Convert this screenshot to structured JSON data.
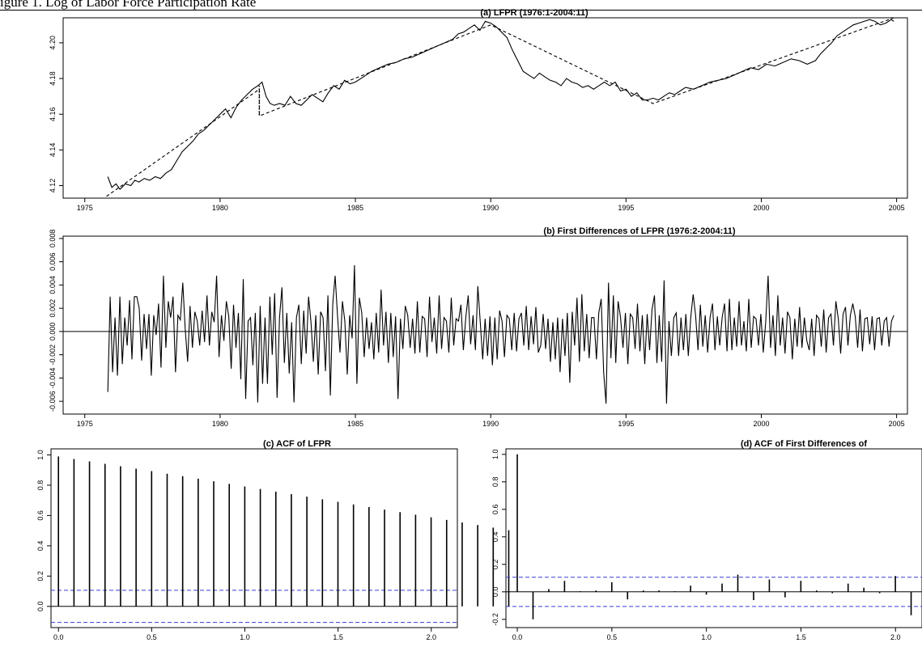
{
  "caption": "igure 1. Log of Labor Force Participation Rate",
  "chart_data": [
    {
      "id": "a",
      "type": "line",
      "title": "(a) LFPR (1976:1-2004:11)",
      "xlim": [
        1974.2,
        2005.4
      ],
      "ylim": [
        4.113,
        4.214
      ],
      "xticks": [
        "1975",
        "1980",
        "1985",
        "1990",
        "1995",
        "2000",
        "2005"
      ],
      "yticks": [
        "4.12",
        "4.14",
        "4.16",
        "4.18",
        "4.20"
      ],
      "series": [
        {
          "style": "solid",
          "x": [
            1975.85,
            1976.0,
            1976.15,
            1976.3,
            1976.5,
            1976.7,
            1976.85,
            1977.0,
            1977.2,
            1977.4,
            1977.6,
            1977.8,
            1978.0,
            1978.2,
            1978.4,
            1978.6,
            1978.8,
            1979.0,
            1979.2,
            1979.4,
            1979.6,
            1979.8,
            1980.0,
            1980.2,
            1980.4,
            1980.6,
            1980.8,
            1981.0,
            1981.2,
            1981.4,
            1981.55,
            1981.7,
            1981.85,
            1982.0,
            1982.2,
            1982.4,
            1982.6,
            1982.8,
            1983.0,
            1983.2,
            1983.4,
            1983.6,
            1983.8,
            1984.0,
            1984.2,
            1984.4,
            1984.6,
            1984.8,
            1985.0,
            1985.3,
            1985.6,
            1985.9,
            1986.2,
            1986.5,
            1986.8,
            1987.1,
            1987.4,
            1987.7,
            1988.0,
            1988.3,
            1988.6,
            1988.8,
            1989.0,
            1989.2,
            1989.4,
            1989.6,
            1989.8,
            1990.0,
            1990.2,
            1990.4,
            1990.6,
            1990.8,
            1991.0,
            1991.2,
            1991.4,
            1991.6,
            1991.8,
            1992.0,
            1992.2,
            1992.4,
            1992.6,
            1992.8,
            1993.0,
            1993.2,
            1993.4,
            1993.6,
            1993.8,
            1994.0,
            1994.2,
            1994.4,
            1994.6,
            1994.8,
            1995.0,
            1995.2,
            1995.4,
            1995.6,
            1995.8,
            1996.0,
            1996.2,
            1996.4,
            1996.6,
            1996.8,
            1997.0,
            1997.2,
            1997.5,
            1997.8,
            1998.1,
            1998.4,
            1998.7,
            1999.0,
            1999.3,
            1999.6,
            1999.9,
            2000.2,
            2000.5,
            2000.8,
            2001.1,
            2001.4,
            2001.7,
            2002.0,
            2002.2,
            2002.4,
            2002.6,
            2002.8,
            2003.0,
            2003.2,
            2003.4,
            2003.6,
            2003.8,
            2004.0,
            2004.2,
            2004.4,
            2004.6,
            2004.8,
            2004.9
          ],
          "y": [
            4.125,
            4.119,
            4.121,
            4.118,
            4.121,
            4.12,
            4.123,
            4.122,
            4.124,
            4.123,
            4.125,
            4.124,
            4.127,
            4.129,
            4.134,
            4.139,
            4.142,
            4.145,
            4.149,
            4.151,
            4.154,
            4.157,
            4.16,
            4.163,
            4.158,
            4.164,
            4.168,
            4.171,
            4.174,
            4.176,
            4.178,
            4.17,
            4.166,
            4.165,
            4.166,
            4.165,
            4.17,
            4.166,
            4.165,
            4.168,
            4.171,
            4.169,
            4.167,
            4.172,
            4.176,
            4.174,
            4.179,
            4.177,
            4.178,
            4.181,
            4.184,
            4.186,
            4.188,
            4.189,
            4.191,
            4.192,
            4.194,
            4.196,
            4.198,
            4.2,
            4.202,
            4.205,
            4.206,
            4.208,
            4.21,
            4.207,
            4.212,
            4.211,
            4.209,
            4.206,
            4.203,
            4.196,
            4.19,
            4.184,
            4.182,
            4.18,
            4.183,
            4.181,
            4.179,
            4.178,
            4.176,
            4.18,
            4.178,
            4.177,
            4.175,
            4.176,
            4.174,
            4.176,
            4.178,
            4.176,
            4.178,
            4.173,
            4.174,
            4.17,
            4.172,
            4.168,
            4.168,
            4.169,
            4.168,
            4.17,
            4.172,
            4.171,
            4.173,
            4.175,
            4.174,
            4.176,
            4.178,
            4.179,
            4.18,
            4.182,
            4.184,
            4.186,
            4.185,
            4.188,
            4.187,
            4.189,
            4.191,
            4.19,
            4.188,
            4.19,
            4.194,
            4.197,
            4.2,
            4.204,
            4.206,
            4.208,
            4.21,
            4.211,
            4.212,
            4.213,
            4.212,
            4.21,
            4.211,
            4.213,
            4.212
          ]
        },
        {
          "style": "dashed",
          "x": [
            1975.8,
            1981.45,
            1981.45,
            1990.0,
            1996.0,
            2004.9
          ],
          "y": [
            4.114,
            4.174,
            4.159,
            4.21,
            4.166,
            4.214
          ]
        }
      ],
      "annotations": [
        {
          "style": "dotted",
          "x": [
            1981.45,
            1981.45
          ],
          "y": [
            4.176,
            4.159
          ]
        }
      ]
    },
    {
      "id": "b",
      "type": "line",
      "title": "(b) First Differences of LFPR (1976:2-2004:11)",
      "xlim": [
        1974.2,
        2005.4
      ],
      "ylim": [
        -0.0071,
        0.0082
      ],
      "xticks": [
        "1975",
        "1980",
        "1985",
        "1990",
        "1995",
        "2000",
        "2005"
      ],
      "yticks": [
        "-0.006",
        "-0.004",
        "-0.002",
        "0.000",
        "0.002",
        "0.004",
        "0.006",
        "0.008"
      ],
      "hline": 0,
      "series": [
        {
          "style": "solid",
          "x_start": 1975.85,
          "x_end": 2004.9,
          "values": [
            -0.0052,
            0.003,
            -0.0035,
            0.0012,
            -0.0038,
            0.003,
            -0.0028,
            0.0012,
            -0.0012,
            0.0027,
            -0.0024,
            0.003,
            0.003,
            0.002,
            -0.0025,
            0.0015,
            -0.0015,
            0.0015,
            -0.0038,
            0.0014,
            -0.0003,
            0.0024,
            -0.0031,
            0.0048,
            -0.0014,
            0.0026,
            0.0012,
            0.003,
            -0.0035,
            0.0014,
            0.001,
            0.0042,
            0.0002,
            -0.0026,
            0.0022,
            -0.0014,
            0.0017,
            0.0009,
            -0.0012,
            0.0018,
            -0.0009,
            0.0031,
            -0.0012,
            0.0017,
            0.0008,
            0.0048,
            -0.0022,
            0.0014,
            -0.0008,
            0.0026,
            0.0013,
            -0.0032,
            0.0023,
            -0.0014,
            0.0016,
            -0.0041,
            0.0045,
            -0.0058,
            0.0009,
            0.0012,
            -0.0029,
            0.0016,
            -0.0061,
            0.0022,
            -0.0045,
            0.0012,
            -0.0045,
            0.003,
            -0.002,
            0.0033,
            -0.0057,
            0.0012,
            0.0038,
            -0.0027,
            0.0016,
            -0.0036,
            0.0008,
            -0.0061,
            0.0012,
            0.0023,
            -0.0028,
            0.0018,
            -0.0019,
            0.003,
            0.0008,
            -0.0026,
            0.0014,
            -0.0037,
            0.0017,
            0.0012,
            -0.0034,
            0.0031,
            -0.0055,
            0.0024,
            0.0048,
            0.0013,
            -0.0018,
            0.0026,
            0.0009,
            -0.0037,
            0.0014,
            -0.0006,
            0.0057,
            -0.0045,
            0.0029,
            0.0016,
            -0.0022,
            0.0012,
            -0.0015,
            0.0008,
            -0.0024,
            0.0016,
            -0.0018,
            0.0036,
            -0.0012,
            0.0017,
            -0.0027,
            0.0016,
            -0.0022,
            0.0013,
            -0.0058,
            0.0011,
            -0.0015,
            0.0022,
            0.0014,
            -0.0014,
            0.0011,
            -0.0019,
            0.0026,
            -0.0018,
            0.0013,
            0.0011,
            -0.0022,
            0.003,
            -0.0009,
            0.0012,
            -0.0019,
            0.0031,
            -0.0015,
            0.0012,
            0.0009,
            -0.0018,
            0.0029,
            -0.0012,
            0.0011,
            0.0009,
            0.0023,
            -0.0016,
            0.0012,
            0.0031,
            -0.0011,
            0.0014,
            -0.0016,
            0.0039,
            0.0008,
            -0.0024,
            0.0011,
            -0.0021,
            0.0013,
            -0.0029,
            0.0012,
            -0.0024,
            0.0018,
            0.0009,
            -0.0022,
            0.0014,
            0.0011,
            -0.0016,
            0.0016,
            -0.0017,
            0.0011,
            0.0016,
            -0.0012,
            0.0022,
            -0.0016,
            0.0013,
            -0.0011,
            0.0021,
            -0.0018,
            -0.0012,
            0.0015,
            -0.0015,
            0.0011,
            -0.0026,
            0.0008,
            -0.0024,
            0.0012,
            -0.0035,
            0.0011,
            -0.0021,
            0.0016,
            -0.0044,
            0.0017,
            -0.0012,
            0.0029,
            -0.0026,
            0.0032,
            -0.0017,
            0.0015,
            -0.0023,
            0.0012,
            0.0012,
            -0.0024,
            0.0016,
            0.0028,
            -0.0035,
            -0.0062,
            0.0042,
            -0.0023,
            0.0031,
            -0.0027,
            0.0026,
            0.0012,
            -0.0014,
            0.0016,
            -0.0028,
            0.0015,
            0.0012,
            -0.0015,
            0.0024,
            -0.0017,
            0.0014,
            -0.0028,
            0.0015,
            -0.0016,
            0.0019,
            0.0031,
            -0.0027,
            0.0014,
            -0.0026,
            0.0044,
            -0.0062,
            0.0009,
            -0.0021,
            0.0012,
            0.0016,
            -0.0021,
            0.0012,
            -0.0016,
            0.0015,
            -0.0021,
            0.0012,
            0.0032,
            0.0014,
            -0.0016,
            0.0023,
            -0.0013,
            0.0014,
            -0.0018,
            0.0012,
            0.0024,
            -0.0016,
            0.0013,
            -0.0012,
            0.0012,
            0.0024,
            -0.0017,
            0.0028,
            -0.0016,
            0.0012,
            -0.0013,
            0.0026,
            -0.0012,
            0.0009,
            -0.0017,
            0.0028,
            -0.0014,
            0.0013,
            0.0011,
            -0.0012,
            0.0015,
            -0.0018,
            0.0008,
            0.0048,
            -0.0014,
            0.0014,
            -0.0021,
            0.0031,
            -0.0012,
            0.0012,
            -0.0019,
            0.0017,
            0.0012,
            -0.0024,
            0.0011,
            -0.0013,
            0.0021,
            -0.0014,
            0.0012,
            -0.0008,
            -0.0016,
            0.0011,
            -0.0021,
            0.0014,
            0.0011,
            -0.0013,
            0.0019,
            -0.0018,
            0.0012,
            0.0015,
            -0.0012,
            0.0026,
            0.0011,
            -0.0019,
            0.0015,
            0.0021,
            -0.0012,
            0.0014,
            0.0024,
            0.0013,
            -0.0014,
            0.0019,
            -0.0017,
            0.0011,
            0.0012,
            -0.0011,
            0.0013,
            -0.0016,
            0.0011,
            0.0012,
            -0.0012,
            0.0009,
            0.0012,
            -0.0013,
            0.0009,
            0.0014
          ]
        }
      ]
    },
    {
      "id": "c",
      "type": "bar",
      "title": "(c) ACF of LFPR",
      "xlim": [
        -0.04,
        2.14
      ],
      "ylim": [
        -0.14,
        1.04
      ],
      "xticks": [
        "0.0",
        "0.5",
        "1.0",
        "1.5",
        "2.0"
      ],
      "yticks": [
        "0.0",
        "0.2",
        "0.4",
        "0.6",
        "0.8",
        "1.0"
      ],
      "lag_step": 0.0833,
      "hline": 0,
      "ci": 0.106,
      "values": [
        0.99,
        0.973,
        0.957,
        0.941,
        0.925,
        0.909,
        0.893,
        0.876,
        0.86,
        0.843,
        0.826,
        0.809,
        0.792,
        0.775,
        0.758,
        0.741,
        0.724,
        0.707,
        0.69,
        0.673,
        0.656,
        0.639,
        0.622,
        0.605,
        0.588,
        0.571,
        0.554,
        0.537,
        0.52,
        0.503
      ]
    },
    {
      "id": "d",
      "type": "bar",
      "title": "(d) ACF of First Differences of",
      "xlim": [
        -0.06,
        2.14
      ],
      "ylim": [
        -0.26,
        1.04
      ],
      "xticks": [
        "0.0",
        "0.5",
        "1.0",
        "1.5",
        "2.0"
      ],
      "yticks": [
        "-0.2",
        "0.0",
        "0.2",
        "0.4",
        "0.6",
        "0.8",
        "1.0"
      ],
      "lag_step": 0.0833,
      "hline": 0,
      "ci": 0.106,
      "values": [
        1.0,
        -0.2,
        0.02,
        0.08,
        0.005,
        0.01,
        0.07,
        -0.055,
        0.01,
        0.01,
        0.005,
        0.045,
        -0.02,
        0.06,
        0.125,
        -0.06,
        0.09,
        -0.04,
        0.08,
        0.01,
        -0.01,
        0.06,
        0.03,
        -0.01,
        0.115,
        -0.17,
        0.02
      ]
    }
  ]
}
